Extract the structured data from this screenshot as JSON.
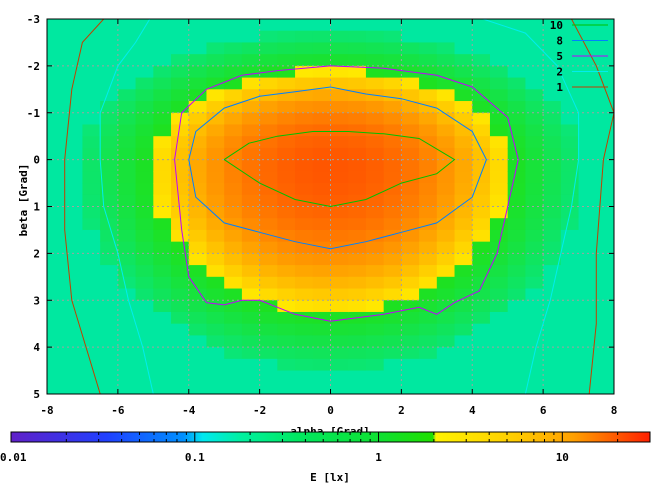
{
  "chart_data": {
    "type": "heatmap",
    "xlabel": "alpha [Grad]",
    "ylabel": "beta [Grad]",
    "xlim": [
      -8,
      8
    ],
    "ylim": [
      -3,
      5
    ],
    "y_inverted": true,
    "grid": true,
    "x_ticks": [
      "-8",
      "-6",
      "-4",
      "-2",
      "0",
      "2",
      "4",
      "6",
      "8"
    ],
    "y_ticks": [
      "-3",
      "-2",
      "-1",
      "0",
      "1",
      "2",
      "3",
      "4",
      "5"
    ],
    "colorbar": {
      "label": "E [lx]",
      "scale": "log",
      "range": [
        0.01,
        30
      ],
      "ticks": [
        "0.01",
        "0.1",
        "1",
        "10"
      ]
    },
    "legend": {
      "placement": "top-right",
      "entries": [
        {
          "label": "10",
          "color": "#00c000"
        },
        {
          "label": "8",
          "color": "#0080ff"
        },
        {
          "label": "5",
          "color": "#c000ff"
        },
        {
          "label": "2",
          "color": "#00eeee"
        },
        {
          "label": "1",
          "color": "#c04000"
        }
      ]
    },
    "contours": [
      {
        "level": 10,
        "color": "#00c000",
        "points": [
          [
            -3,
            0
          ],
          [
            -2.3,
            -0.35
          ],
          [
            -1.5,
            -0.5
          ],
          [
            -0.5,
            -0.6
          ],
          [
            0.5,
            -0.6
          ],
          [
            1.5,
            -0.55
          ],
          [
            2.5,
            -0.45
          ],
          [
            3.5,
            0
          ],
          [
            3,
            0.3
          ],
          [
            2,
            0.5
          ],
          [
            1,
            0.85
          ],
          [
            0,
            1
          ],
          [
            -1,
            0.85
          ],
          [
            -2,
            0.5
          ],
          [
            -3,
            0
          ]
        ]
      },
      {
        "level": 8,
        "color": "#0080ff",
        "points": [
          [
            -4,
            0
          ],
          [
            -3.8,
            -0.6
          ],
          [
            -3,
            -1.1
          ],
          [
            -2,
            -1.35
          ],
          [
            -1,
            -1.45
          ],
          [
            0,
            -1.55
          ],
          [
            1,
            -1.4
          ],
          [
            2,
            -1.3
          ],
          [
            3,
            -1.1
          ],
          [
            4,
            -0.6
          ],
          [
            4.4,
            0
          ],
          [
            4,
            0.8
          ],
          [
            3,
            1.35
          ],
          [
            2,
            1.55
          ],
          [
            1,
            1.75
          ],
          [
            0,
            1.9
          ],
          [
            -1,
            1.75
          ],
          [
            -2,
            1.55
          ],
          [
            -3,
            1.35
          ],
          [
            -3.8,
            0.8
          ],
          [
            -4,
            0
          ]
        ]
      },
      {
        "level": 5,
        "color": "#c000ff",
        "points": [
          [
            -4.4,
            0
          ],
          [
            -4.2,
            -1
          ],
          [
            -3.5,
            -1.5
          ],
          [
            -2.5,
            -1.8
          ],
          [
            -1.5,
            -1.9
          ],
          [
            0,
            -2
          ],
          [
            1.5,
            -1.95
          ],
          [
            3,
            -1.8
          ],
          [
            4,
            -1.55
          ],
          [
            5,
            -0.9
          ],
          [
            5.3,
            0
          ],
          [
            5,
            1
          ],
          [
            4.7,
            2
          ],
          [
            4.2,
            2.8
          ],
          [
            3.5,
            3.05
          ],
          [
            3,
            3.3
          ],
          [
            2.5,
            3.15
          ],
          [
            1.5,
            3.3
          ],
          [
            0,
            3.45
          ],
          [
            -1,
            3.3
          ],
          [
            -2,
            3
          ],
          [
            -2.5,
            3
          ],
          [
            -3,
            3.1
          ],
          [
            -3.5,
            3.05
          ],
          [
            -4,
            2.5
          ],
          [
            -4.2,
            1.5
          ],
          [
            -4.4,
            0
          ]
        ]
      },
      {
        "level": 2,
        "color": "#00eeee",
        "points": [
          [
            -5.1,
            -3
          ],
          [
            -5.5,
            -2.5
          ],
          [
            -6,
            -2
          ],
          [
            -6.5,
            -1
          ],
          [
            -6.5,
            0
          ],
          [
            -6.4,
            1
          ],
          [
            -6,
            2
          ],
          [
            -5.7,
            3
          ],
          [
            -5.3,
            4
          ],
          [
            -5,
            5
          ],
          [
            5.5,
            5
          ],
          [
            5.8,
            4
          ],
          [
            6.2,
            3
          ],
          [
            6.5,
            2
          ],
          [
            6.8,
            1
          ],
          [
            7,
            0
          ],
          [
            7,
            -1
          ],
          [
            6.4,
            -2
          ],
          [
            5.5,
            -2.7
          ],
          [
            4.3,
            -3
          ]
        ]
      },
      {
        "level": 1,
        "color": "#c04000",
        "points": [
          [
            -6.4,
            -3
          ],
          [
            -7,
            -2.5
          ],
          [
            -7.3,
            -1.5
          ],
          [
            -7.5,
            0
          ],
          [
            -7.5,
            1.5
          ],
          [
            -7.3,
            3
          ],
          [
            -6.9,
            4
          ],
          [
            -6.5,
            5
          ],
          [
            7.3,
            5
          ],
          [
            7.5,
            3.5
          ],
          [
            7.5,
            2
          ],
          [
            7.7,
            0
          ],
          [
            8,
            -1
          ],
          [
            7.5,
            -2
          ],
          [
            6.8,
            -3
          ]
        ]
      }
    ]
  }
}
